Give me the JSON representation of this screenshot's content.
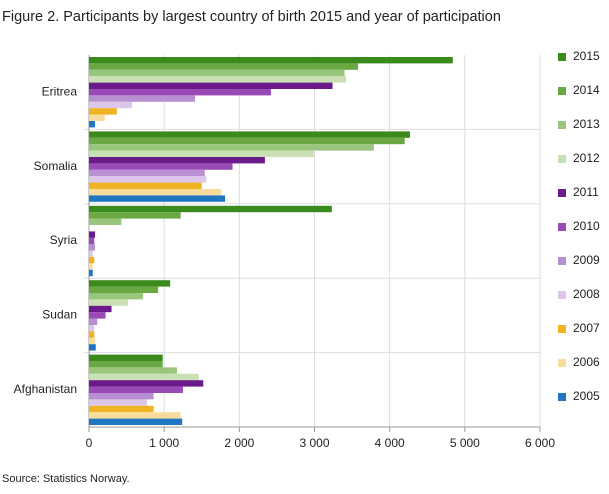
{
  "chart_data": {
    "type": "hbar",
    "title": "Figure 2. Participants by largest country of birth 2015 and year of participation",
    "source": "Source: Statistics Norway.",
    "categories": [
      "Eritrea",
      "Somalia",
      "Syria",
      "Sudan",
      "Afghanistan"
    ],
    "series": [
      {
        "name": "2015",
        "color": "#3a8a1c",
        "values": [
          4840,
          4270,
          3230,
          1080,
          980
        ]
      },
      {
        "name": "2014",
        "color": "#6aa843",
        "values": [
          3580,
          4200,
          1220,
          920,
          980
        ]
      },
      {
        "name": "2013",
        "color": "#99c57c",
        "values": [
          3400,
          3790,
          430,
          720,
          1170
        ]
      },
      {
        "name": "2012",
        "color": "#c8e0b4",
        "values": [
          3420,
          2990,
          10,
          520,
          1460
        ]
      },
      {
        "name": "2011",
        "color": "#6a1a8a",
        "values": [
          3240,
          2340,
          80,
          300,
          1520
        ]
      },
      {
        "name": "2010",
        "color": "#9a4ab6",
        "values": [
          2420,
          1910,
          70,
          220,
          1250
        ]
      },
      {
        "name": "2009",
        "color": "#b88fd0",
        "values": [
          1410,
          1540,
          80,
          110,
          860
        ]
      },
      {
        "name": "2008",
        "color": "#dcc6ea",
        "values": [
          570,
          1560,
          50,
          70,
          770
        ]
      },
      {
        "name": "2007",
        "color": "#f0b323",
        "values": [
          370,
          1500,
          70,
          70,
          860
        ]
      },
      {
        "name": "2006",
        "color": "#f8dc9b",
        "values": [
          210,
          1760,
          50,
          80,
          1220
        ]
      },
      {
        "name": "2005",
        "color": "#1f77c4",
        "values": [
          80,
          1810,
          50,
          90,
          1240
        ]
      }
    ],
    "xlim": [
      0,
      6000
    ],
    "xticks": [
      0,
      {
        "value": 1000,
        "label": "1 000"
      },
      {
        "value": 2000,
        "label": "2 000"
      },
      {
        "value": 3000,
        "label": "3 000"
      },
      {
        "value": 4000,
        "label": "4 000"
      },
      {
        "value": 5000,
        "label": "5 000"
      },
      {
        "value": 6000,
        "label": "6 000"
      }
    ],
    "grid": true,
    "legend": "right"
  }
}
